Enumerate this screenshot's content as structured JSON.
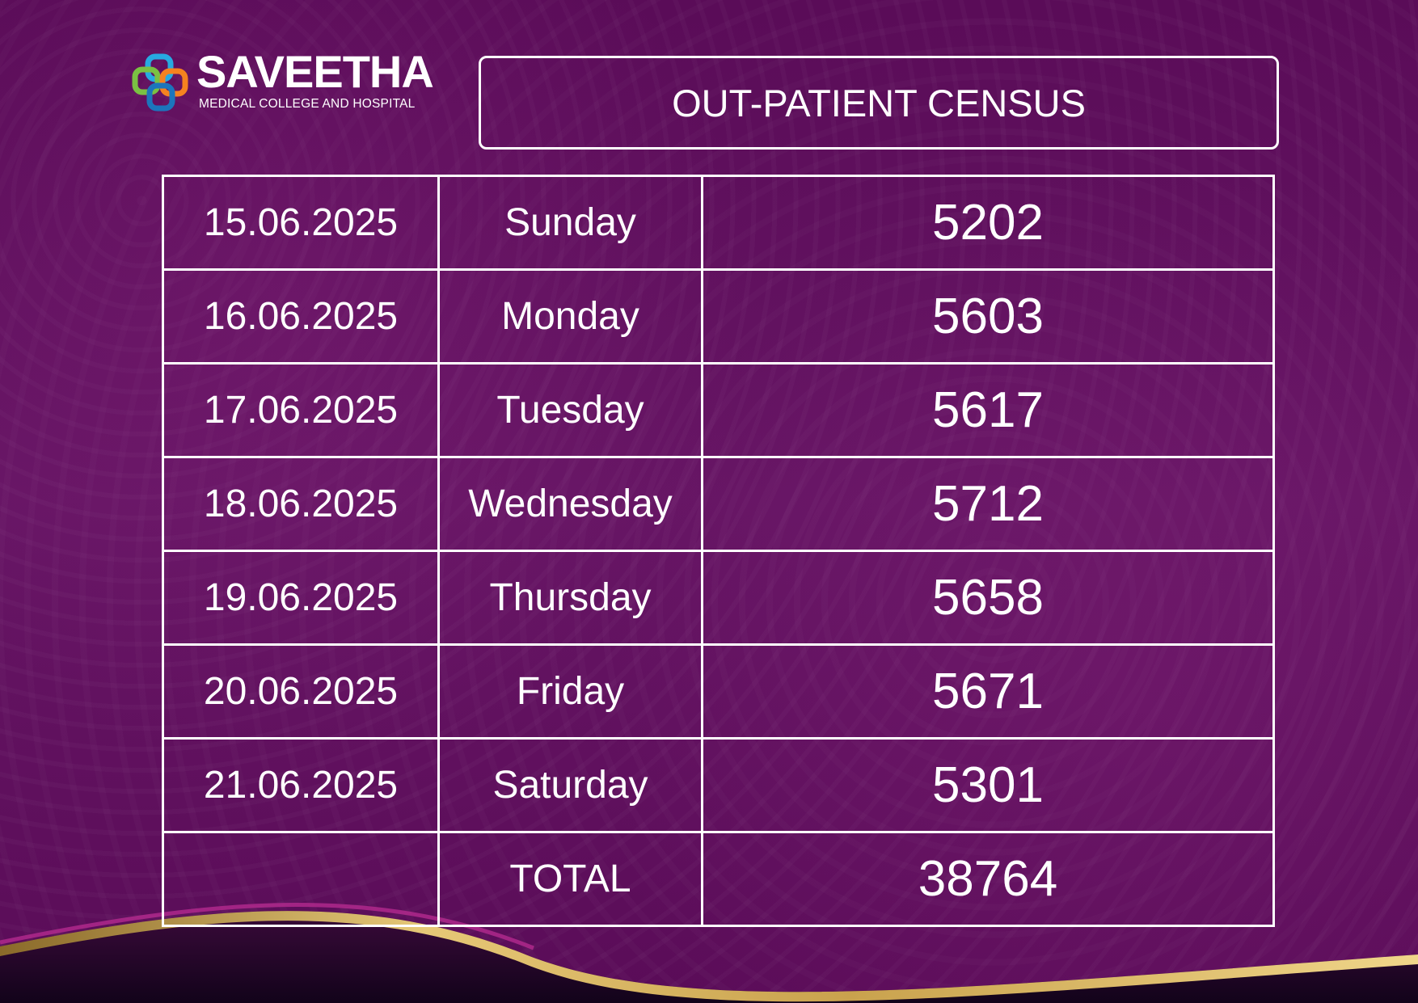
{
  "logo": {
    "name": "SAVEETHA",
    "subtitle": "MEDICAL COLLEGE AND HOSPITAL"
  },
  "title": "OUT-PATIENT CENSUS",
  "rows": [
    {
      "date": "15.06.2025",
      "day": "Sunday",
      "count": "5202"
    },
    {
      "date": "16.06.2025",
      "day": "Monday",
      "count": "5603"
    },
    {
      "date": "17.06.2025",
      "day": "Tuesday",
      "count": "5617"
    },
    {
      "date": "18.06.2025",
      "day": "Wednesday",
      "count": "5712"
    },
    {
      "date": "19.06.2025",
      "day": "Thursday",
      "count": "5658"
    },
    {
      "date": "20.06.2025",
      "day": "Friday",
      "count": "5671"
    },
    {
      "date": "21.06.2025",
      "day": "Saturday",
      "count": "5301"
    }
  ],
  "total": {
    "label": "TOTAL",
    "count": "38764"
  },
  "colors": {
    "background": "#5e0f5c",
    "border": "#ffffff",
    "text": "#ffffff",
    "wave_gold": "#d4b15a",
    "logo_green": "#7ac143",
    "logo_orange": "#f58220",
    "logo_blue": "#1c75bc",
    "logo_cyan": "#27aae1"
  }
}
